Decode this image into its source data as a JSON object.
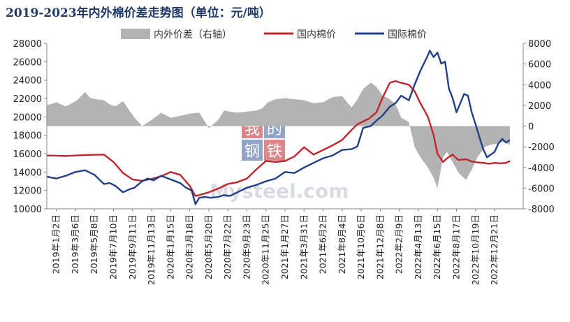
{
  "chart_data": {
    "type": "line",
    "title": "2019-2023年内外棉价差走势图（单位：元/吨）",
    "watermark": {
      "chars": [
        "我",
        "的",
        "钢",
        "铁"
      ],
      "latin": "Mysteel.com",
      "color_red": "#c0242c",
      "color_blue": "#3a5a9a"
    },
    "x_tick_labels": [
      "2019年1月2日",
      "2019年3月6日",
      "2019年5月8日",
      "2019年7月10日",
      "2019年9月11日",
      "2019年11月13日",
      "2020年1月15日",
      "2020年3月18日",
      "2020年5月20日",
      "2020年7月22日",
      "2020年9月23日",
      "2020年11月25日",
      "2021年1月27日",
      "2021年3月31日",
      "2021年6月2日",
      "2021年8月4日",
      "2021年10月6日",
      "2021年12月8日",
      "2022年2月9日",
      "2022年4月13日",
      "2022年6月15日",
      "2022年8月17日",
      "2022年10月19日",
      "2022年12月21日"
    ],
    "x_range": [
      0,
      25
    ],
    "y_left": {
      "min": 10000,
      "max": 28000,
      "step": 2000,
      "ticks": [
        "10000",
        "12000",
        "14000",
        "16000",
        "18000",
        "20000",
        "22000",
        "24000",
        "26000",
        "28000"
      ]
    },
    "y_right": {
      "min": -8000,
      "max": 8000,
      "step": 2000,
      "ticks": [
        "-8000",
        "-6000",
        "-4000",
        "-2000",
        "0",
        "2000",
        "4000",
        "6000",
        "8000"
      ]
    },
    "legend_position": "top-center",
    "series": [
      {
        "name": "内外价差（右轴）",
        "type": "area",
        "axis": "right",
        "color": "#b3b3b3",
        "x": [
          0,
          0.5,
          1,
          1.3,
          1.6,
          2,
          2.3,
          2.6,
          3,
          3.3,
          3.6,
          4,
          4.3,
          4.6,
          5,
          5.5,
          6,
          6.5,
          7,
          7.5,
          8,
          8.5,
          9,
          9.3,
          9.6,
          10,
          10.5,
          11,
          11.3,
          11.6,
          12,
          12.5,
          13,
          13.5,
          14,
          14.5,
          15,
          15.5,
          15.8,
          16,
          16.3,
          16.6,
          17,
          17.3,
          17.6,
          18,
          18.3,
          18.6,
          19,
          19.3,
          19.6,
          20,
          20.3,
          20.5,
          20.8,
          21,
          21.3,
          21.6,
          22,
          22.3,
          22.6,
          23,
          23.3,
          23.6,
          24,
          24.3
        ],
        "values": [
          2000,
          2300,
          1900,
          2200,
          2500,
          3300,
          2700,
          2600,
          2500,
          2100,
          1900,
          2400,
          1600,
          800,
          0,
          600,
          1300,
          800,
          1000,
          1200,
          1300,
          -200,
          600,
          1500,
          1400,
          1300,
          1400,
          1500,
          1700,
          2300,
          2600,
          2700,
          2600,
          2500,
          2200,
          2300,
          2800,
          2900,
          2200,
          1800,
          2600,
          3600,
          4200,
          3800,
          3000,
          2600,
          2100,
          800,
          400,
          -2000,
          -3000,
          -4000,
          -5000,
          -6000,
          -3000,
          -2500,
          -3500,
          -4500,
          -5200,
          -4200,
          -3000,
          -2000,
          -1800,
          -1700,
          -1500,
          -1800
        ]
      },
      {
        "name": "国内棉价",
        "type": "line",
        "axis": "left",
        "color": "#c0242c",
        "x": [
          0,
          1,
          2,
          3,
          3.5,
          4,
          4.5,
          5,
          5.5,
          6,
          6.5,
          7,
          7.5,
          7.8,
          8,
          8.5,
          9,
          9.5,
          10,
          10.5,
          11,
          11.5,
          12,
          12.5,
          13,
          13.5,
          14,
          14.5,
          15,
          15.5,
          16,
          16.3,
          16.6,
          16.9,
          17.3,
          17.6,
          18,
          18.3,
          18.6,
          19,
          19.3,
          19.6,
          20,
          20.3,
          20.5,
          20.8,
          21,
          21.3,
          21.6,
          22,
          22.3,
          22.6,
          22.9,
          23.2,
          23.5,
          23.8,
          24.1,
          24.3
        ],
        "values": [
          15800,
          15750,
          15850,
          15900,
          15100,
          13900,
          13200,
          13050,
          13250,
          13550,
          14000,
          13700,
          12500,
          11400,
          11500,
          11800,
          12200,
          12700,
          12900,
          13300,
          14300,
          15200,
          15100,
          15200,
          15700,
          16700,
          15900,
          16400,
          16900,
          17500,
          18600,
          19200,
          19500,
          19800,
          20500,
          22000,
          23700,
          23900,
          23700,
          23500,
          22800,
          21500,
          20000,
          18000,
          16000,
          15100,
          15500,
          15900,
          15300,
          15400,
          15150,
          15050,
          15000,
          14900,
          15000,
          14950,
          15000,
          15200
        ]
      },
      {
        "name": "国际棉价",
        "type": "line",
        "axis": "left",
        "color": "#1f3f86",
        "x": [
          0,
          0.5,
          1,
          1.5,
          2,
          2.5,
          3,
          3.3,
          3.6,
          4,
          4.3,
          4.6,
          5,
          5.3,
          5.6,
          6,
          6.5,
          7,
          7.3,
          7.6,
          7.8,
          8,
          8.3,
          8.6,
          9,
          9.3,
          9.6,
          10,
          10.5,
          11,
          11.5,
          12,
          12.5,
          13,
          13.5,
          14,
          14.5,
          15,
          15.5,
          16,
          16.3,
          16.6,
          17,
          17.3,
          17.6,
          18,
          18.3,
          18.6,
          19,
          19.3,
          19.6,
          20,
          20.1,
          20.3,
          20.5,
          20.7,
          20.9,
          21.1,
          21.3,
          21.5,
          21.7,
          21.9,
          22.1,
          22.3,
          22.5,
          22.7,
          22.9,
          23.1,
          23.3,
          23.5,
          23.7,
          23.9,
          24.1,
          24.3
        ],
        "values": [
          13500,
          13300,
          13600,
          14000,
          14200,
          13700,
          12700,
          12800,
          12500,
          11800,
          12100,
          12300,
          13000,
          13300,
          13100,
          13600,
          13200,
          12800,
          12300,
          12000,
          10500,
          11200,
          11300,
          11200,
          11300,
          11500,
          11400,
          11800,
          12300,
          12600,
          13000,
          13300,
          14000,
          13900,
          14500,
          15000,
          15500,
          15800,
          16400,
          16500,
          16800,
          18800,
          19000,
          19600,
          20100,
          21100,
          21500,
          22300,
          21800,
          23500,
          25000,
          26700,
          27200,
          26500,
          27000,
          25800,
          26000,
          23100,
          22000,
          20500,
          21500,
          22500,
          22300,
          20500,
          19200,
          17800,
          16500,
          15600,
          15900,
          16200,
          17100,
          17600,
          17200,
          17500
        ]
      }
    ]
  }
}
